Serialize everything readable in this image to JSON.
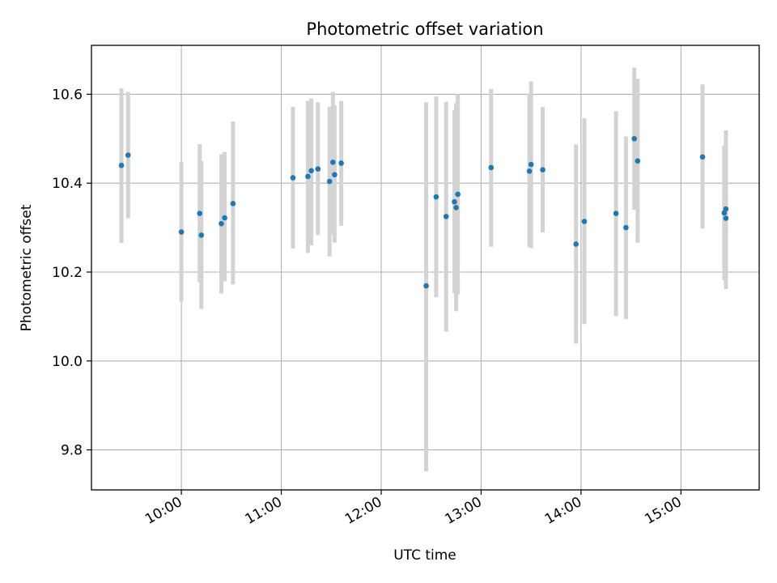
{
  "chart_data": {
    "type": "scatter",
    "title": "Photometric offset variation",
    "xlabel": "UTC time",
    "ylabel": "Photometric offset",
    "x_unit": "UTC time (HH:MM)",
    "xlim": [
      "09:06",
      "15:47"
    ],
    "ylim": [
      9.71,
      10.71
    ],
    "x_ticks": [
      "10:00",
      "11:00",
      "12:00",
      "13:00",
      "14:00",
      "15:00"
    ],
    "y_ticks": [
      "9.8",
      "10.0",
      "10.2",
      "10.4",
      "10.6"
    ],
    "grid": true,
    "legend": "none",
    "colors": {
      "point": "#1f77b4",
      "errorbar": "#d3d3d3",
      "grid": "#b0b0b0"
    },
    "series": [
      {
        "points": [
          {
            "x": "09:24",
            "y": 10.44,
            "yerr_low": 10.265,
            "yerr_high": 10.613
          },
          {
            "x": "09:28",
            "y": 10.463,
            "yerr_low": 10.321,
            "yerr_high": 10.605
          },
          {
            "x": "10:00",
            "y": 10.29,
            "yerr_low": 10.133,
            "yerr_high": 10.448
          },
          {
            "x": "10:11",
            "y": 10.332,
            "yerr_low": 10.177,
            "yerr_high": 10.488
          },
          {
            "x": "10:12",
            "y": 10.283,
            "yerr_low": 10.117,
            "yerr_high": 10.45
          },
          {
            "x": "10:24",
            "y": 10.309,
            "yerr_low": 10.152,
            "yerr_high": 10.465
          },
          {
            "x": "10:26",
            "y": 10.322,
            "yerr_low": 10.179,
            "yerr_high": 10.47
          },
          {
            "x": "10:31",
            "y": 10.354,
            "yerr_low": 10.172,
            "yerr_high": 10.539
          },
          {
            "x": "11:07",
            "y": 10.412,
            "yerr_low": 10.253,
            "yerr_high": 10.572
          },
          {
            "x": "11:16",
            "y": 10.415,
            "yerr_low": 10.243,
            "yerr_high": 10.585
          },
          {
            "x": "11:18",
            "y": 10.428,
            "yerr_low": 10.26,
            "yerr_high": 10.59
          },
          {
            "x": "11:22",
            "y": 10.432,
            "yerr_low": 10.283,
            "yerr_high": 10.582
          },
          {
            "x": "11:29",
            "y": 10.404,
            "yerr_low": 10.235,
            "yerr_high": 10.572
          },
          {
            "x": "11:31",
            "y": 10.447,
            "yerr_low": 10.285,
            "yerr_high": 10.605
          },
          {
            "x": "11:32",
            "y": 10.419,
            "yerr_low": 10.266,
            "yerr_high": 10.575
          },
          {
            "x": "11:36",
            "y": 10.445,
            "yerr_low": 10.304,
            "yerr_high": 10.585
          },
          {
            "x": "12:27",
            "y": 10.169,
            "yerr_low": 9.752,
            "yerr_high": 10.582
          },
          {
            "x": "12:33",
            "y": 10.369,
            "yerr_low": 10.143,
            "yerr_high": 10.595
          },
          {
            "x": "12:39",
            "y": 10.325,
            "yerr_low": 10.066,
            "yerr_high": 10.583
          },
          {
            "x": "12:44",
            "y": 10.358,
            "yerr_low": 10.152,
            "yerr_high": 10.565
          },
          {
            "x": "12:45",
            "y": 10.345,
            "yerr_low": 10.112,
            "yerr_high": 10.58
          },
          {
            "x": "12:46",
            "y": 10.375,
            "yerr_low": 10.15,
            "yerr_high": 10.6
          },
          {
            "x": "13:06",
            "y": 10.435,
            "yerr_low": 10.257,
            "yerr_high": 10.612
          },
          {
            "x": "13:29",
            "y": 10.427,
            "yerr_low": 10.256,
            "yerr_high": 10.601
          },
          {
            "x": "13:30",
            "y": 10.442,
            "yerr_low": 10.254,
            "yerr_high": 10.629
          },
          {
            "x": "13:37",
            "y": 10.43,
            "yerr_low": 10.289,
            "yerr_high": 10.571
          },
          {
            "x": "13:57",
            "y": 10.263,
            "yerr_low": 10.039,
            "yerr_high": 10.487
          },
          {
            "x": "14:02",
            "y": 10.314,
            "yerr_low": 10.083,
            "yerr_high": 10.546
          },
          {
            "x": "14:21",
            "y": 10.332,
            "yerr_low": 10.101,
            "yerr_high": 10.562
          },
          {
            "x": "14:27",
            "y": 10.3,
            "yerr_low": 10.094,
            "yerr_high": 10.505
          },
          {
            "x": "14:32",
            "y": 10.5,
            "yerr_low": 10.34,
            "yerr_high": 10.66
          },
          {
            "x": "14:34",
            "y": 10.45,
            "yerr_low": 10.266,
            "yerr_high": 10.635
          },
          {
            "x": "15:13",
            "y": 10.459,
            "yerr_low": 10.298,
            "yerr_high": 10.622
          },
          {
            "x": "15:26",
            "y": 10.333,
            "yerr_low": 10.182,
            "yerr_high": 10.484
          },
          {
            "x": "15:27",
            "y": 10.342,
            "yerr_low": 10.162,
            "yerr_high": 10.519
          },
          {
            "x": "15:27",
            "y": 10.321,
            "yerr_low": 10.18,
            "yerr_high": 10.48
          }
        ]
      }
    ]
  }
}
